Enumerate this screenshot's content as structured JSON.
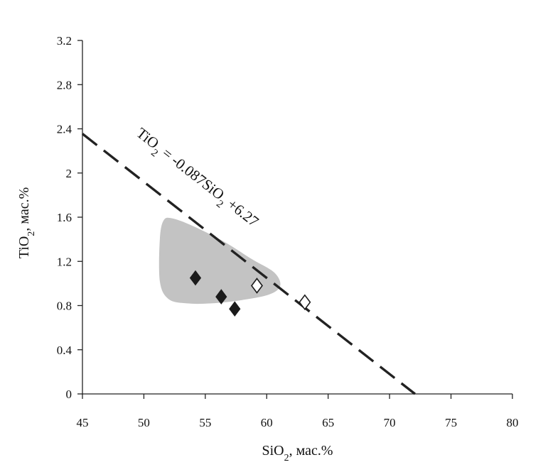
{
  "chart_data": {
    "type": "scatter",
    "xlabel": {
      "base": "SiO",
      "sub": "2",
      "tail": ", мас.%"
    },
    "ylabel": {
      "base": "TiO",
      "sub": "2",
      "tail": ", мас.%"
    },
    "xlim": [
      45,
      80
    ],
    "ylim": [
      0,
      3.2
    ],
    "x_ticks": [
      45,
      50,
      55,
      60,
      65,
      70,
      75,
      80
    ],
    "y_ticks": [
      0,
      0.4,
      0.8,
      1.2,
      1.6,
      2,
      2.4,
      2.8,
      3.2
    ],
    "grid": false,
    "legend": "none",
    "series": [
      {
        "marker": "diamond-filled",
        "color": "#1a1a1a",
        "points": [
          [
            54.2,
            1.05
          ],
          [
            56.3,
            0.88
          ],
          [
            57.4,
            0.77
          ]
        ]
      },
      {
        "marker": "diamond-open",
        "color": "#1a1a1a",
        "points": [
          [
            59.2,
            0.98
          ],
          [
            63.1,
            0.83
          ]
        ]
      }
    ],
    "field_region": {
      "color": "#c3c3c3",
      "outline": [
        [
          51.3,
          1.4
        ],
        [
          51.6,
          1.57
        ],
        [
          52.3,
          1.59
        ],
        [
          54.0,
          1.52
        ],
        [
          56.5,
          1.38
        ],
        [
          58.8,
          1.22
        ],
        [
          60.6,
          1.1
        ],
        [
          61.1,
          0.98
        ],
        [
          60.2,
          0.9
        ],
        [
          58.0,
          0.85
        ],
        [
          55.5,
          0.82
        ],
        [
          53.5,
          0.82
        ],
        [
          52.0,
          0.86
        ],
        [
          51.3,
          1.02
        ]
      ]
    },
    "trend_line": {
      "slope": -0.087,
      "intercept": 6.27,
      "x_range": [
        45,
        72.07
      ],
      "style": "dashed",
      "color": "#222222"
    },
    "annotation": {
      "parts": [
        {
          "t": "TiO",
          "sub": false
        },
        {
          "t": "2",
          "sub": true
        },
        {
          "t": " = -0.087SiO",
          "sub": false
        },
        {
          "t": "2",
          "sub": true
        },
        {
          "t": " +6.27",
          "sub": false
        }
      ],
      "anchor": [
        47.0,
        2.32
      ]
    }
  }
}
